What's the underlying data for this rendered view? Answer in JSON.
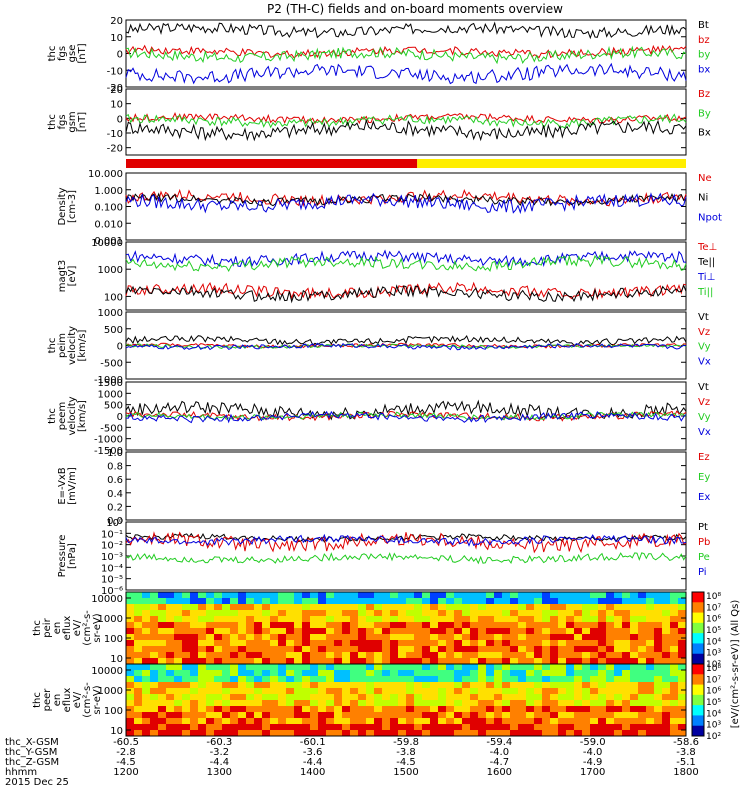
{
  "title": "P2 (TH-C) fields and on-board moments overview",
  "colors": {
    "black": "#000000",
    "red": "#e00000",
    "green": "#22cc22",
    "blue": "#0000dd",
    "yellow": "#ffee00"
  },
  "chart_data": [
    {
      "id": "fgs-gse",
      "type": "line",
      "ylabel": [
        "thc",
        "fgs",
        "gse",
        "[nT]"
      ],
      "ylim": [
        -20,
        20
      ],
      "ticks": [
        "20",
        "10",
        "0",
        "-10",
        "-20"
      ],
      "tick_values": [
        20,
        10,
        0,
        -10,
        -20
      ],
      "series": [
        {
          "name": "Bt",
          "color": "black",
          "base": 14,
          "amp": 4
        },
        {
          "name": "bz",
          "color": "red",
          "base": 1,
          "amp": 3
        },
        {
          "name": "by",
          "color": "green",
          "base": -1,
          "amp": 4
        },
        {
          "name": "bx",
          "color": "blue",
          "base": -12,
          "amp": 5
        }
      ]
    },
    {
      "id": "fgs-gsm",
      "type": "line",
      "ylabel": [
        "thc",
        "fgs",
        "gsm",
        "[nT]"
      ],
      "ylim": [
        -25,
        20
      ],
      "ticks": [
        "20",
        "10",
        "0",
        "-10",
        "-20"
      ],
      "tick_values": [
        20,
        10,
        0,
        -10,
        -20
      ],
      "series": [
        {
          "name": "Bz",
          "color": "red",
          "base": 0,
          "amp": 3
        },
        {
          "name": "By",
          "color": "green",
          "base": -2,
          "amp": 4
        },
        {
          "name": "Bx",
          "color": "black",
          "base": -8,
          "amp": 6
        }
      ]
    },
    {
      "id": "density",
      "type": "line",
      "log": true,
      "ylabel": [
        "Density",
        "[cm-3]"
      ],
      "ylim": [
        -3,
        1
      ],
      "ticks": [
        "10.000",
        "1.000",
        "0.100",
        "0.010",
        "0.001"
      ],
      "tick_values": [
        1,
        0,
        -1,
        -2,
        -3
      ],
      "series": [
        {
          "name": "Ne",
          "color": "red",
          "base": -0.5,
          "amp": 0.4
        },
        {
          "name": "Ni",
          "color": "black",
          "base": -0.6,
          "amp": 0.3
        },
        {
          "name": "Npot",
          "color": "blue",
          "base": -0.8,
          "amp": 0.5
        }
      ]
    },
    {
      "id": "temperature",
      "type": "line",
      "log": true,
      "ylabel": [
        "magt3",
        "[eV]"
      ],
      "ylim": [
        1.5,
        4
      ],
      "ticks": [
        "10000",
        "1000",
        "100"
      ],
      "tick_values": [
        4,
        3,
        2
      ],
      "series": [
        {
          "name": "Te⊥",
          "color": "red",
          "base": 2.2,
          "amp": 0.25
        },
        {
          "name": "Te||",
          "color": "black",
          "base": 2.1,
          "amp": 0.25
        },
        {
          "name": "Ti⊥",
          "color": "blue",
          "base": 3.4,
          "amp": 0.25
        },
        {
          "name": "Ti||",
          "color": "green",
          "base": 3.2,
          "amp": 0.25
        }
      ]
    },
    {
      "id": "peim-velocity",
      "type": "line",
      "ylabel": [
        "thc",
        "peim",
        "velocity",
        "[km/s]"
      ],
      "ylim": [
        -1000,
        1000
      ],
      "ticks": [
        "1000",
        "500",
        "0",
        "-500",
        "-1000"
      ],
      "tick_values": [
        1000,
        500,
        0,
        -500,
        -1000
      ],
      "series": [
        {
          "name": "Vt",
          "color": "black",
          "base": 150,
          "amp": 120
        },
        {
          "name": "Vz",
          "color": "red",
          "base": 0,
          "amp": 60
        },
        {
          "name": "Vy",
          "color": "green",
          "base": -20,
          "amp": 60
        },
        {
          "name": "Vx",
          "color": "blue",
          "base": -30,
          "amp": 80
        }
      ]
    },
    {
      "id": "peem-velocity",
      "type": "line",
      "ylabel": [
        "thc",
        "peem",
        "velocity",
        "[km/s]"
      ],
      "ylim": [
        -1500,
        1500
      ],
      "ticks": [
        "1500",
        "1000",
        "500",
        "0",
        "-500",
        "-1000",
        "-1500"
      ],
      "tick_values": [
        1500,
        1000,
        500,
        0,
        -500,
        -1000,
        -1500
      ],
      "series": [
        {
          "name": "Vt",
          "color": "black",
          "base": 250,
          "amp": 350
        },
        {
          "name": "Vz",
          "color": "red",
          "base": 0,
          "amp": 180
        },
        {
          "name": "Vy",
          "color": "green",
          "base": 0,
          "amp": 150
        },
        {
          "name": "Vx",
          "color": "blue",
          "base": -50,
          "amp": 200
        }
      ]
    },
    {
      "id": "efield",
      "type": "line",
      "ylabel": [
        "E=-VxB",
        "[mV/m]"
      ],
      "ylim": [
        0,
        1
      ],
      "ticks": [
        "1.0",
        "0.8",
        "0.6",
        "0.4",
        "0.2",
        "0.0"
      ],
      "tick_values": [
        1,
        0.8,
        0.6,
        0.4,
        0.2,
        0
      ],
      "series": [
        {
          "name": "Ez",
          "color": "red",
          "base": null,
          "amp": 0
        },
        {
          "name": "Ey",
          "color": "green",
          "base": null,
          "amp": 0
        },
        {
          "name": "Ex",
          "color": "blue",
          "base": null,
          "amp": 0
        }
      ]
    },
    {
      "id": "pressure",
      "type": "line",
      "log": true,
      "ylabel": [
        "Pressure",
        "[nPa]"
      ],
      "ylim": [
        -6,
        0
      ],
      "ticks": [
        "10⁰",
        "10⁻¹",
        "10⁻²",
        "10⁻³",
        "10⁻⁴",
        "10⁻⁵",
        "10⁻⁶"
      ],
      "tick_values": [
        0,
        -1,
        -2,
        -3,
        -4,
        -5,
        -6
      ],
      "series": [
        {
          "name": "Pt",
          "color": "black",
          "base": -1.4,
          "amp": 0.3
        },
        {
          "name": "Pb",
          "color": "red",
          "base": -1.8,
          "amp": 0.8
        },
        {
          "name": "Pe",
          "color": "green",
          "base": -3.2,
          "amp": 0.4
        },
        {
          "name": "Pi",
          "color": "blue",
          "base": -1.6,
          "amp": 0.4
        }
      ]
    },
    {
      "id": "peir-spectrogram",
      "type": "heatmap",
      "log": true,
      "ylabel": [
        "thc",
        "peir",
        "en",
        "eflux",
        "eV/",
        "(cm²-s-",
        "sr-eV)"
      ],
      "ylim": [
        0.7,
        4.3
      ],
      "ticks": [
        "10000",
        "1000",
        "100",
        "10"
      ],
      "tick_values": [
        4,
        3,
        2,
        1
      ]
    },
    {
      "id": "peer-spectrogram",
      "type": "heatmap",
      "log": true,
      "ylabel": [
        "thc",
        "peer",
        "en",
        "eflux",
        "eV/",
        "(cm²-s-",
        "sr-eV)"
      ],
      "ylim": [
        0.7,
        4.3
      ],
      "ticks": [
        "10000",
        "1000",
        "100",
        "10"
      ],
      "tick_values": [
        4,
        3,
        2,
        1
      ]
    }
  ],
  "colorbar": {
    "label": "[eV/(cm²-s-sr-eV)] (All Qs)",
    "ticks": [
      "10⁸",
      "10⁷",
      "10⁶",
      "10⁵",
      "10⁴",
      "10³",
      "10²"
    ],
    "ticks2": [
      "10⁸",
      "10⁷",
      "10⁶",
      "10⁵",
      "10⁴",
      "10³",
      "10²"
    ]
  },
  "bar": {
    "split": 0.52,
    "left_color": "red",
    "right_color": "yellow"
  },
  "x_axis": {
    "row_labels": [
      "thc_X-GSM",
      "thc_Y-GSM",
      "thc_Z-GSM",
      "hhmm",
      "2015 Dec 25"
    ],
    "columns": [
      [
        "-60.5",
        "-2.8",
        "-4.5",
        "1200"
      ],
      [
        "-60.3",
        "-3.2",
        "-4.4",
        "1300"
      ],
      [
        "-60.1",
        "-3.6",
        "-4.4",
        "1400"
      ],
      [
        "-59.8",
        "-3.8",
        "-4.5",
        "1500"
      ],
      [
        "-59.4",
        "-4.0",
        "-4.7",
        "1600"
      ],
      [
        "-59.0",
        "-4.0",
        "-4.9",
        "1700"
      ],
      [
        "-58.6",
        "-3.8",
        "-5.1",
        "1800"
      ]
    ]
  }
}
